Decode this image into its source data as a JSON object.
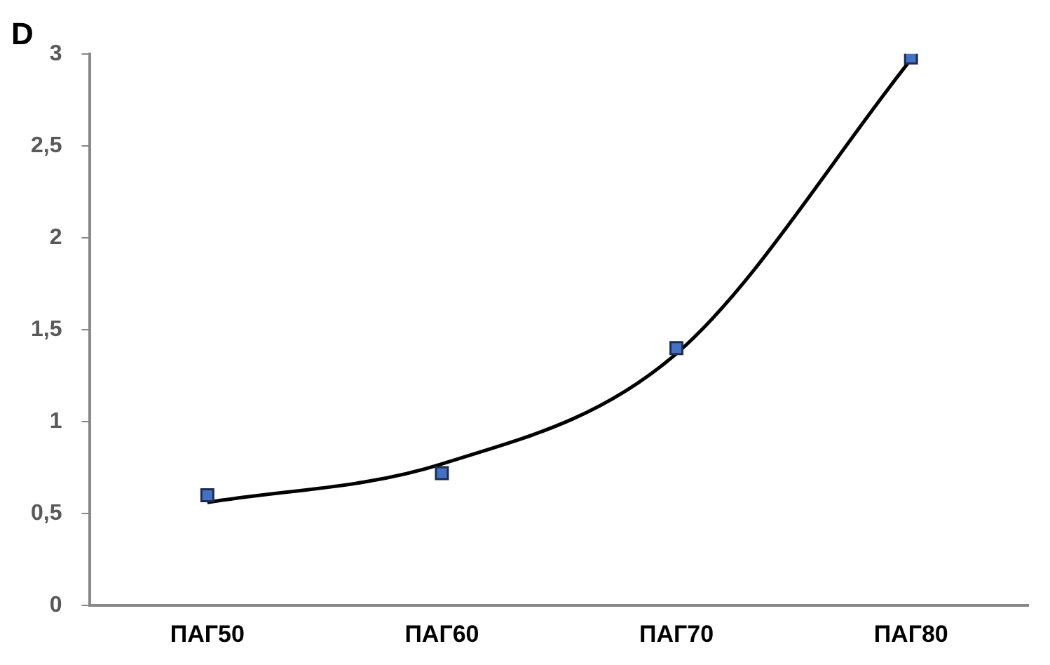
{
  "chart_data": {
    "type": "scatter",
    "title": "D",
    "categories": [
      "ПАГ50",
      "ПАГ60",
      "ПАГ70",
      "ПАГ80"
    ],
    "series": [
      {
        "color": "#4472c4",
        "marker": "square",
        "values": [
          0.6,
          0.72,
          1.4,
          2.98
        ]
      },
      {
        "type": "line",
        "color": "#000000",
        "marker": "none",
        "values": [
          0.56,
          0.77,
          1.37,
          2.97
        ]
      }
    ],
    "ylim": [
      0,
      3
    ],
    "yticks": [
      0,
      {
        "value": 0.5,
        "label": "0,5"
      },
      1,
      {
        "value": 1.5,
        "label": "1,5"
      },
      2,
      {
        "value": 2.5,
        "label": "2,5"
      },
      3
    ],
    "grid": false,
    "legend": false
  }
}
